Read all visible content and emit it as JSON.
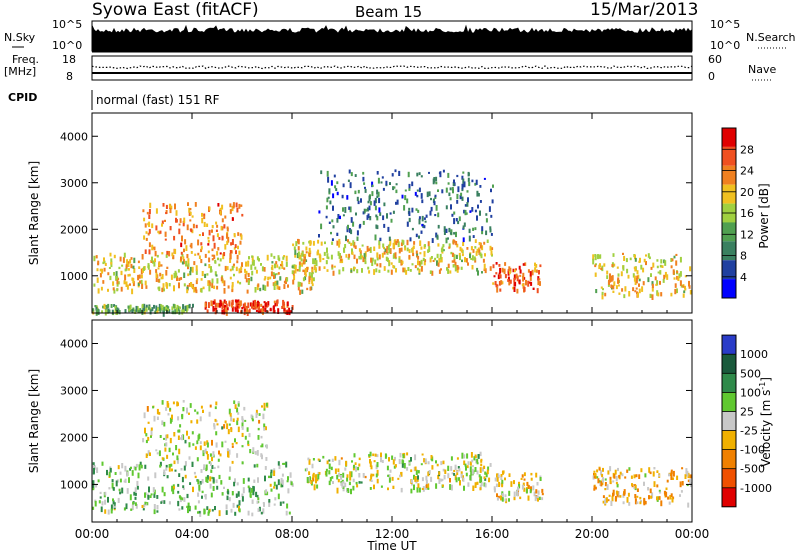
{
  "header": {
    "title": "Syowa East (fitACF)",
    "beam": "Beam 15",
    "date": "15/Mar/2013"
  },
  "status_panels": {
    "nsky_label": "N.Sky",
    "nsky_ticks": [
      "10^5",
      "10^0"
    ],
    "nsearch_label": "N.Search",
    "nsearch_ticks": [
      "10^5",
      "10^0"
    ],
    "freq_label_1": "Freq.",
    "freq_label_2": "[MHz]",
    "freq_ticks": [
      "18",
      "8"
    ],
    "nave_label": "Nave",
    "nave_ticks": [
      "60",
      "0"
    ],
    "cpid_label": "CPID",
    "cpid_text": "normal (fast) 151 RF"
  },
  "colors": {
    "power_scale": [
      "#0000ff",
      "#2040a0",
      "#3a8060",
      "#50a050",
      "#a0d040",
      "#f0c020",
      "#f08020",
      "#f05020",
      "#e00000"
    ],
    "velocity_scale": [
      "#2a3cc8",
      "#1a5a3c",
      "#2f8a4a",
      "#60c830",
      "#c8c8c8",
      "#f0b000",
      "#f08000",
      "#f05000",
      "#e00000"
    ]
  },
  "chart_data": [
    {
      "type": "heatmap",
      "title": "",
      "ylabel": "Slant Range [km]",
      "xlabel": "Time UT",
      "x_ticks": [
        "00:00",
        "04:00",
        "08:00",
        "12:00",
        "16:00",
        "20:00",
        "00:00"
      ],
      "y_ticks": [
        "1000",
        "2000",
        "3000",
        "4000"
      ],
      "ylim": [
        200,
        4500
      ],
      "colorbar": {
        "label": "Power [dB]",
        "ticks": [
          "4",
          "8",
          "12",
          "16",
          "20",
          "24",
          "28"
        ],
        "range": [
          0,
          30
        ]
      },
      "features": [
        {
          "t": [
            0,
            4
          ],
          "range": [
            200,
            400
          ],
          "value": 12
        },
        {
          "t": [
            0,
            9
          ],
          "range": [
            700,
            1500
          ],
          "value": 18
        },
        {
          "t": [
            2,
            6
          ],
          "range": [
            1500,
            2600
          ],
          "value": 22
        },
        {
          "t": [
            4.5,
            8
          ],
          "range": [
            250,
            500
          ],
          "value": 26
        },
        {
          "t": [
            8,
            16
          ],
          "range": [
            1100,
            1800
          ],
          "value": 18
        },
        {
          "t": [
            9,
            16
          ],
          "range": [
            1800,
            3300
          ],
          "value": 8
        },
        {
          "t": [
            16,
            18
          ],
          "range": [
            700,
            1300
          ],
          "value": 24
        },
        {
          "t": [
            20,
            24
          ],
          "range": [
            600,
            1500
          ],
          "value": 18
        }
      ]
    },
    {
      "type": "heatmap",
      "title": "",
      "ylabel": "Slant Range [km]",
      "xlabel": "Time UT",
      "x_ticks": [
        "00:00",
        "04:00",
        "08:00",
        "12:00",
        "16:00",
        "20:00",
        "00:00"
      ],
      "y_ticks": [
        "1000",
        "2000",
        "3000",
        "4000"
      ],
      "ylim": [
        200,
        4500
      ],
      "colorbar": {
        "label": "Velocity [m s^-1]",
        "ticks": [
          "1000",
          "500",
          "100",
          "25",
          "-25",
          "-100",
          "-500",
          "-1000"
        ],
        "range": [
          -1000,
          1000
        ]
      },
      "features": [
        {
          "t": [
            0,
            8
          ],
          "range": [
            400,
            1500
          ],
          "value": -200
        },
        {
          "t": [
            2,
            7
          ],
          "range": [
            1500,
            2800
          ],
          "value": 0
        },
        {
          "t": [
            8.5,
            16
          ],
          "range": [
            900,
            1700
          ],
          "value": 0
        },
        {
          "t": [
            16,
            18
          ],
          "range": [
            700,
            1300
          ],
          "value": 150
        },
        {
          "t": [
            20,
            24
          ],
          "range": [
            600,
            1400
          ],
          "value": 200
        }
      ]
    }
  ]
}
